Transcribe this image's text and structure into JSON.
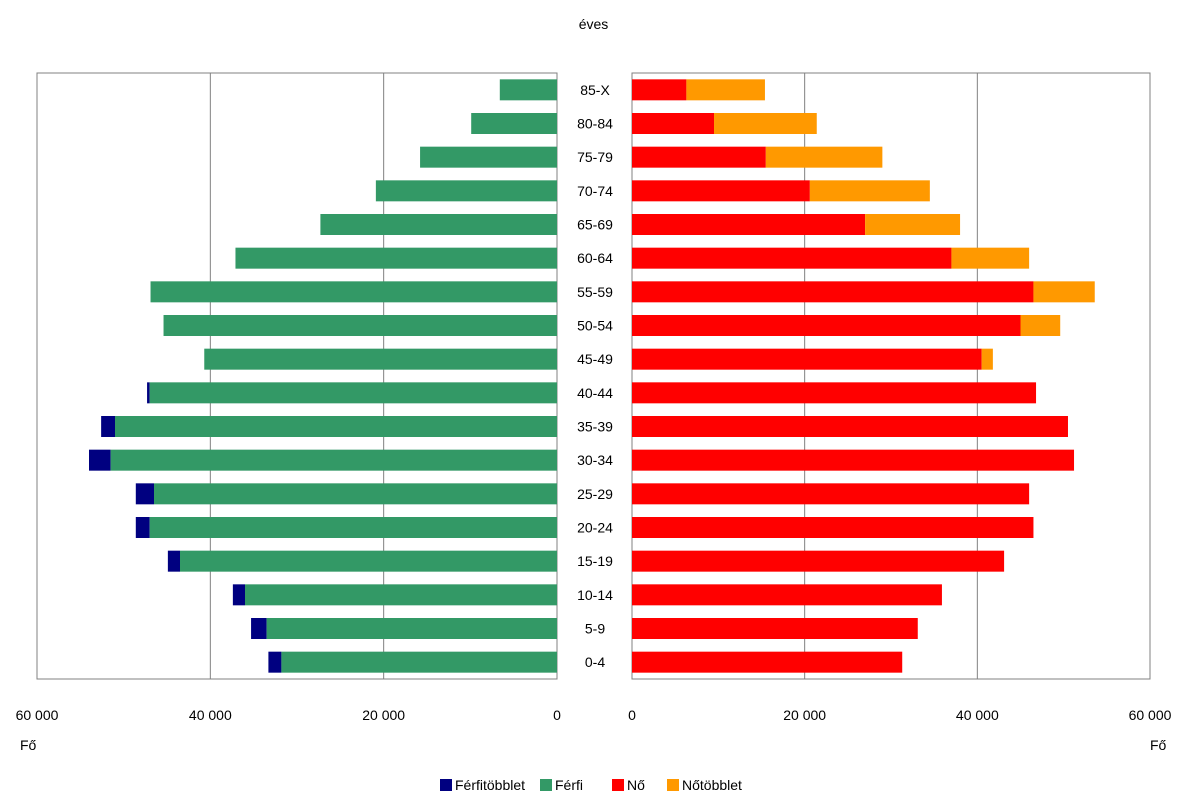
{
  "chart_data": {
    "type": "bar",
    "subtitle": "éves",
    "categories": [
      "85-X",
      "80-84",
      "75-79",
      "70-74",
      "65-69",
      "60-64",
      "55-59",
      "50-54",
      "45-49",
      "40-44",
      "35-39",
      "30-34",
      "25-29",
      "20-24",
      "15-19",
      "10-14",
      "5-9",
      "0-4"
    ],
    "xlim": [
      0,
      60000
    ],
    "ticks_left": [
      "60 000",
      "40 000",
      "20 000",
      "0"
    ],
    "ticks_right": [
      "0",
      "20 000",
      "40 000",
      "60 000"
    ],
    "tick_values_left": [
      60000,
      40000,
      20000,
      0
    ],
    "tick_values_right": [
      0,
      20000,
      40000,
      60000
    ],
    "unit_left": "Fő",
    "unit_right": "Fő",
    "grid": true,
    "legend_position": "bottom",
    "series": [
      {
        "name": "Férfitöbblet",
        "color": "#000080",
        "side": "left",
        "stack_on": "Férfi",
        "values": [
          0,
          0,
          0,
          0,
          0,
          0,
          0,
          0,
          0,
          300,
          1600,
          2500,
          2100,
          1600,
          1400,
          1400,
          1800,
          1500
        ]
      },
      {
        "name": "Férfi",
        "color": "#339966",
        "side": "left",
        "values": [
          6600,
          9900,
          15800,
          20900,
          27300,
          37100,
          46900,
          45400,
          40700,
          47000,
          51000,
          51500,
          46500,
          47000,
          43500,
          36000,
          33500,
          31800
        ]
      },
      {
        "name": "Nő",
        "color": "#ff0000",
        "side": "right",
        "values": [
          6300,
          9500,
          15500,
          20600,
          27000,
          37000,
          46500,
          45000,
          40500,
          46800,
          50500,
          51200,
          46000,
          46500,
          43100,
          35900,
          33100,
          31300
        ]
      },
      {
        "name": "Nőtöbblet",
        "color": "#ff9900",
        "side": "right",
        "stack_on": "Nő",
        "values": [
          9100,
          11900,
          13500,
          13900,
          11000,
          9000,
          7100,
          4600,
          1300,
          0,
          0,
          0,
          0,
          0,
          0,
          0,
          0,
          0
        ]
      }
    ]
  }
}
